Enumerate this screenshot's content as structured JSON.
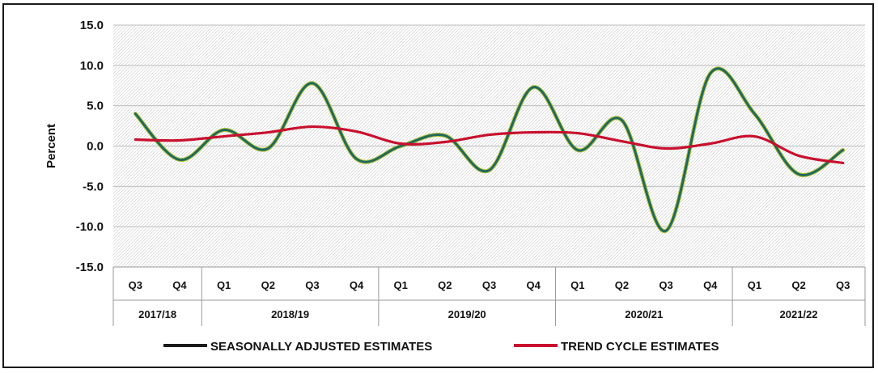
{
  "chart_data": {
    "type": "line",
    "ylabel": "Percent",
    "xlabel": "",
    "ylim": [
      -15.0,
      15.0
    ],
    "yticks": [
      "15.0",
      "10.0",
      "5.0",
      "0.0",
      "-5.0",
      "-10.0",
      "-15.0"
    ],
    "grid": "horizontal",
    "legend_position": "bottom",
    "categories": [
      "Q3",
      "Q4",
      "Q1",
      "Q2",
      "Q3",
      "Q4",
      "Q1",
      "Q2",
      "Q3",
      "Q4",
      "Q1",
      "Q2",
      "Q3",
      "Q4",
      "Q1",
      "Q2",
      "Q3"
    ],
    "groups": [
      {
        "label": "2017/18",
        "span": 2
      },
      {
        "label": "2018/19",
        "span": 4
      },
      {
        "label": "2019/20",
        "span": 4
      },
      {
        "label": "2020/21",
        "span": 4
      },
      {
        "label": "2021/22",
        "span": 3
      }
    ],
    "series": [
      {
        "name": "SEASONALLY ADJUSTED ESTIMATES",
        "color": "#1f6b5c",
        "values": [
          4.0,
          -1.7,
          2.0,
          -0.3,
          7.8,
          -1.6,
          0.0,
          1.3,
          -3.0,
          7.3,
          -0.5,
          3.2,
          -10.5,
          9.0,
          4.0,
          -3.5,
          -0.5
        ]
      },
      {
        "name": "TREND CYCLE ESTIMATES",
        "color": "#c8102e",
        "values": [
          0.8,
          0.7,
          1.2,
          1.7,
          2.4,
          1.8,
          0.3,
          0.5,
          1.4,
          1.7,
          1.6,
          0.6,
          -0.3,
          0.3,
          1.2,
          -1.2,
          -2.1
        ]
      }
    ]
  }
}
